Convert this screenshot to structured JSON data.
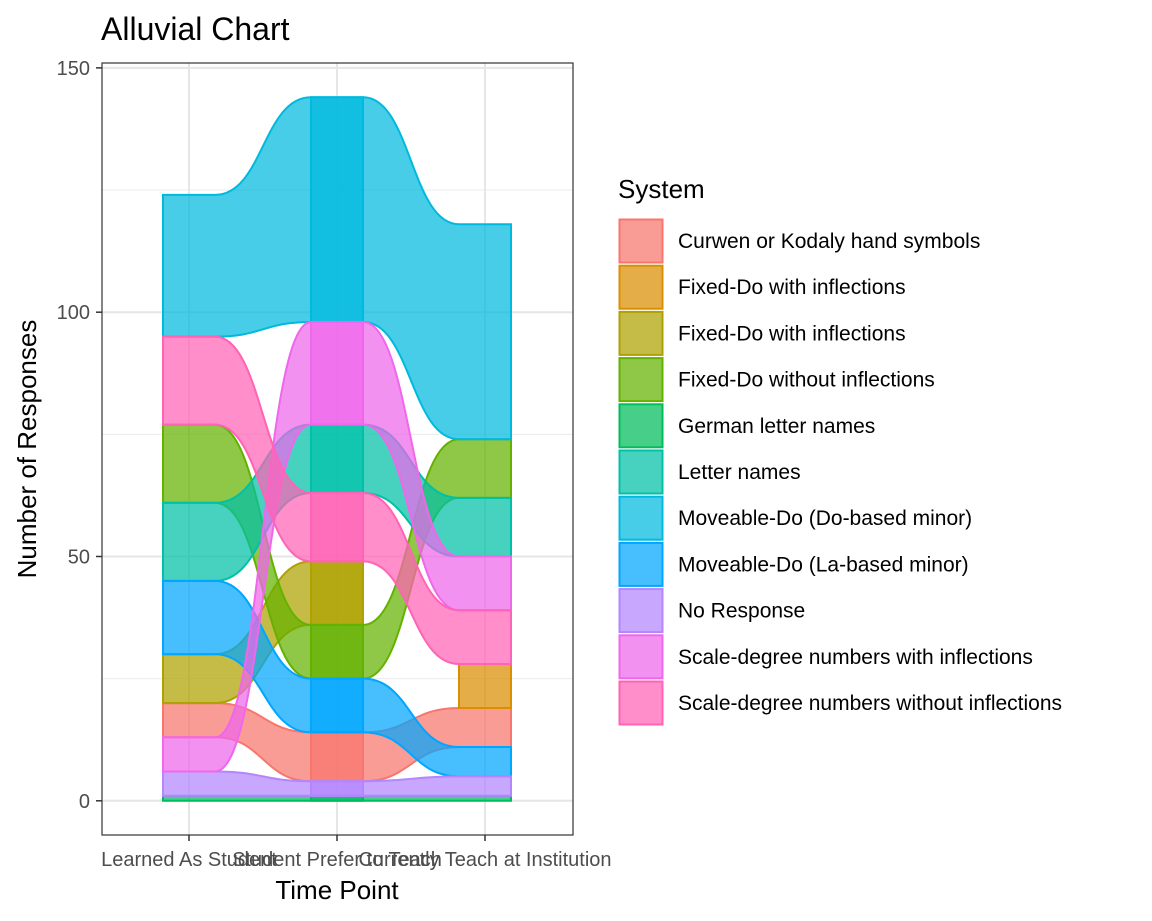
{
  "chart_data": {
    "type": "alluvial",
    "title": "Alluvial Chart",
    "xlabel": "Time Point",
    "ylabel": "Number of Responses",
    "ylim": [
      -7,
      151
    ],
    "yticks": [
      0,
      50,
      100,
      150
    ],
    "grid": true,
    "legend_position": "right",
    "legend_title": "System",
    "x": [
      "Learned As Student",
      "Student Prefer to Teach",
      "Currently Teach at Institution"
    ],
    "series": [
      {
        "name": "Curwen or Kodaly hand symbols",
        "color": "#F8766D",
        "values": [
          7,
          10,
          8
        ]
      },
      {
        "name": "Fixed-Do with inflections",
        "color": "#DB8E00",
        "values": [
          0,
          0,
          9
        ]
      },
      {
        "name": "Fixed-Do with inflections",
        "color": "#AEA200",
        "values": [
          10,
          13,
          0
        ]
      },
      {
        "name": "Fixed-Do without inflections",
        "color": "#64B200",
        "values": [
          16,
          11,
          12
        ]
      },
      {
        "name": "German letter names",
        "color": "#00BD5C",
        "values": [
          1,
          1,
          1
        ]
      },
      {
        "name": "Letter names",
        "color": "#00C1A7",
        "values": [
          16,
          14,
          12
        ]
      },
      {
        "name": "Moveable-Do (Do-based minor)",
        "color": "#00BADE",
        "values": [
          29,
          46,
          44
        ]
      },
      {
        "name": "Moveable-Do (La-based minor)",
        "color": "#00A6FF",
        "values": [
          15,
          11,
          6
        ]
      },
      {
        "name": "No Response",
        "color": "#B385FF",
        "values": [
          5,
          3,
          4
        ]
      },
      {
        "name": "Scale-degree numbers with inflections",
        "color": "#EF67EB",
        "values": [
          7,
          21,
          11
        ]
      },
      {
        "name": "Scale-degree numbers without inflections",
        "color": "#FF63B6",
        "values": [
          18,
          14,
          11
        ]
      }
    ],
    "stack_order": [
      [
        4,
        8,
        9,
        0,
        2,
        7,
        5,
        3,
        10,
        6
      ],
      [
        4,
        8,
        0,
        7,
        3,
        2,
        10,
        5,
        9,
        6
      ],
      [
        4,
        8,
        7,
        0,
        1,
        10,
        9,
        5,
        3,
        6
      ]
    ]
  }
}
